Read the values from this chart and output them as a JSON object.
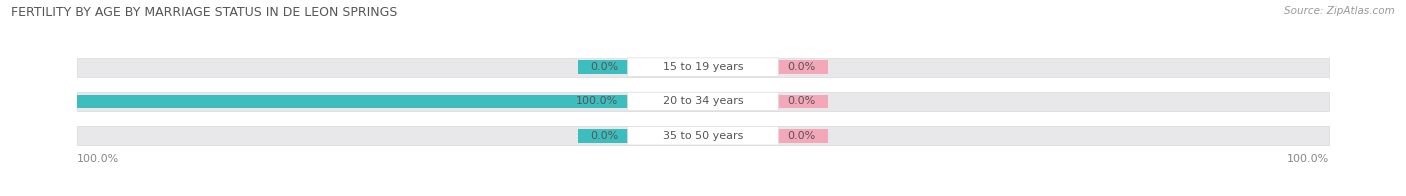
{
  "title": "FERTILITY BY AGE BY MARRIAGE STATUS IN DE LEON SPRINGS",
  "source": "Source: ZipAtlas.com",
  "rows": [
    {
      "label": "15 to 19 years",
      "married": 0.0,
      "unmarried": 0.0
    },
    {
      "label": "20 to 34 years",
      "married": 100.0,
      "unmarried": 0.0
    },
    {
      "label": "35 to 50 years",
      "married": 0.0,
      "unmarried": 0.0
    }
  ],
  "married_color": "#3dbebe",
  "unmarried_color": "#f4a7b9",
  "bar_bg_color": "#e8e8ea",
  "bar_bg_edge": "#d8d8da",
  "title_fontsize": 9.0,
  "label_fontsize": 8.0,
  "value_fontsize": 8.0,
  "tick_fontsize": 8.0,
  "source_fontsize": 7.5,
  "legend_fontsize": 8.0,
  "title_color": "#555555",
  "label_color": "#555555",
  "value_color": "#555555",
  "source_color": "#999999",
  "fig_bg": "#ffffff",
  "axis_bg": "#ffffff"
}
